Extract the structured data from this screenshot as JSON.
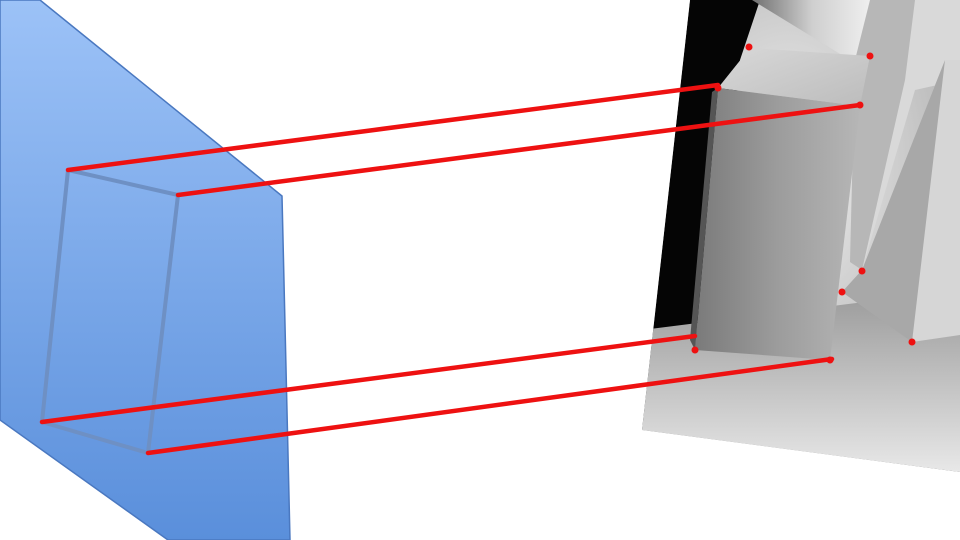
{
  "colors": {
    "background": "#ffffff",
    "image_plane_top": "#9cc2f7",
    "image_plane_bottom": "#5a8fdb",
    "image_plane_edge": "#4a78c0",
    "projected_box_edge": "#6e90c4",
    "correspondence_line": "#ee1111",
    "photo_dark": "#0a0a0a",
    "photo_light": "#e2e2e2"
  },
  "diagram": {
    "correspondence_count": 4,
    "image_plane_label": "",
    "photo_label": ""
  }
}
